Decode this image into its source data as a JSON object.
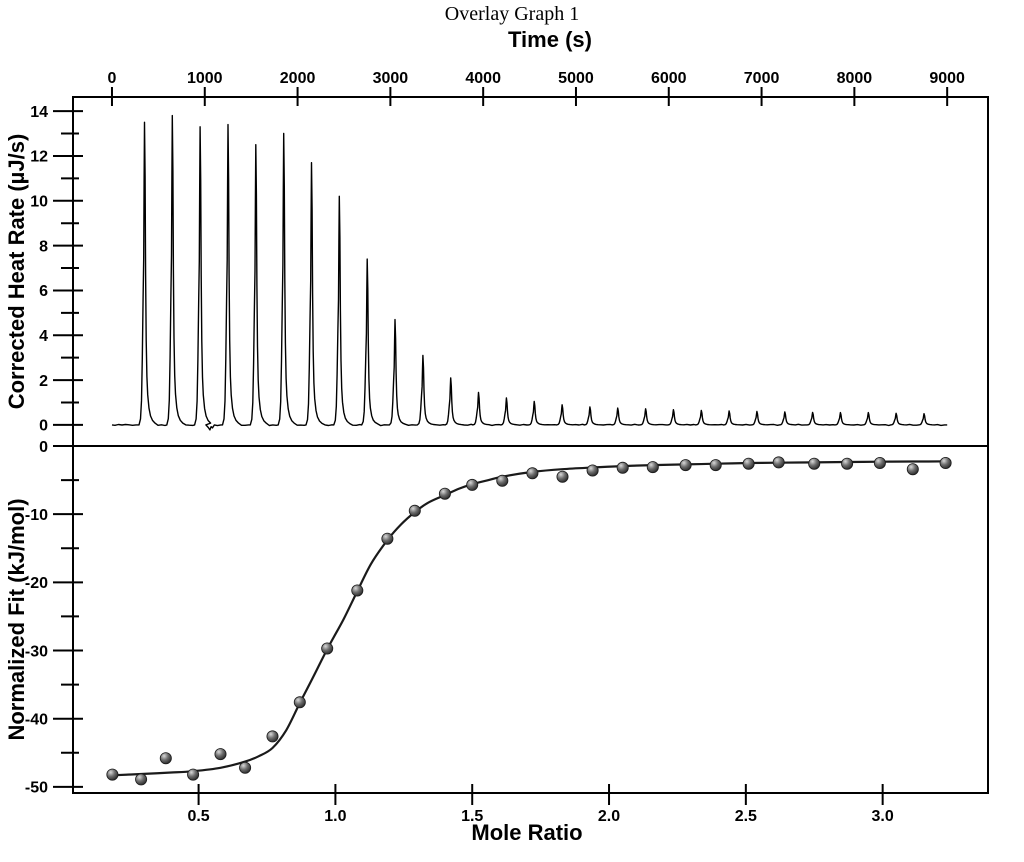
{
  "figure": {
    "title": "Overlay Graph 1"
  },
  "colors": {
    "background": "#ffffff",
    "axis": "#000000",
    "trace": "#000000",
    "fit_line": "#1a1a1a",
    "point_dark": "#1c1c1c",
    "point_mid": "#6f6f6f",
    "point_light": "#d9d9d9"
  },
  "chart_data": [
    {
      "type": "line",
      "name": "thermogram",
      "xlabel": "Time (s)",
      "ylabel": "Corrected Heat Rate (µJ/s)",
      "x_axis_position": "top",
      "grid": false,
      "xlim": [
        -420,
        9440
      ],
      "ylim": [
        -0.94,
        14.63
      ],
      "xticks": [
        0,
        1000,
        2000,
        3000,
        4000,
        5000,
        6000,
        7000,
        8000,
        9000
      ],
      "yticks": [
        0,
        2,
        4,
        6,
        8,
        10,
        12,
        14
      ],
      "yticks_minor": [
        1,
        3,
        5,
        7,
        9,
        11,
        13
      ],
      "baseline": 0,
      "trace_start_time": 0,
      "trace_end_time": 9000,
      "injections": [
        {
          "t": 350,
          "peak": 13.5
        },
        {
          "t": 650,
          "peak": 13.8
        },
        {
          "t": 950,
          "peak": 13.3
        },
        {
          "t": 1250,
          "peak": 13.4
        },
        {
          "t": 1550,
          "peak": 12.5
        },
        {
          "t": 1850,
          "peak": 13.0
        },
        {
          "t": 2150,
          "peak": 11.7
        },
        {
          "t": 2450,
          "peak": 10.2
        },
        {
          "t": 2750,
          "peak": 7.4
        },
        {
          "t": 3050,
          "peak": 4.7
        },
        {
          "t": 3350,
          "peak": 3.1
        },
        {
          "t": 3650,
          "peak": 2.1
        },
        {
          "t": 3950,
          "peak": 1.45
        },
        {
          "t": 4250,
          "peak": 1.2
        },
        {
          "t": 4550,
          "peak": 1.05
        },
        {
          "t": 4850,
          "peak": 0.9
        },
        {
          "t": 5150,
          "peak": 0.8
        },
        {
          "t": 5450,
          "peak": 0.75
        },
        {
          "t": 5750,
          "peak": 0.72
        },
        {
          "t": 6050,
          "peak": 0.68
        },
        {
          "t": 6350,
          "peak": 0.65
        },
        {
          "t": 6650,
          "peak": 0.62
        },
        {
          "t": 6950,
          "peak": 0.6
        },
        {
          "t": 7250,
          "peak": 0.58
        },
        {
          "t": 7550,
          "peak": 0.56
        },
        {
          "t": 7850,
          "peak": 0.55
        },
        {
          "t": 8150,
          "peak": 0.55
        },
        {
          "t": 8450,
          "peak": 0.52
        },
        {
          "t": 8750,
          "peak": 0.5
        }
      ],
      "artifact_dip": {
        "t": 1055,
        "depth": 0.22
      }
    },
    {
      "type": "scatter",
      "name": "binding-isotherm",
      "xlabel": "Mole Ratio",
      "ylabel": "Normalized Fit (kJ/mol)",
      "grid": false,
      "xlim": [
        0.041,
        3.385
      ],
      "ylim": [
        -50.9,
        0
      ],
      "xticks": [
        0.5,
        1.0,
        1.5,
        2.0,
        2.5,
        3.0
      ],
      "yticks": [
        0,
        -10,
        -20,
        -30,
        -40,
        -50
      ],
      "yticks_minor": [
        -5,
        -15,
        -25,
        -35,
        -45
      ],
      "points": [
        [
          0.185,
          -48.2
        ],
        [
          0.29,
          -48.9
        ],
        [
          0.38,
          -45.8
        ],
        [
          0.48,
          -48.2
        ],
        [
          0.58,
          -45.2
        ],
        [
          0.67,
          -47.2
        ],
        [
          0.77,
          -42.6
        ],
        [
          0.87,
          -37.6
        ],
        [
          0.97,
          -29.7
        ],
        [
          1.08,
          -21.2
        ],
        [
          1.19,
          -13.6
        ],
        [
          1.29,
          -9.5
        ],
        [
          1.4,
          -7.0
        ],
        [
          1.5,
          -5.7
        ],
        [
          1.61,
          -5.1
        ],
        [
          1.72,
          -4.0
        ],
        [
          1.83,
          -4.5
        ],
        [
          1.94,
          -3.6
        ],
        [
          2.05,
          -3.2
        ],
        [
          2.16,
          -3.1
        ],
        [
          2.28,
          -2.8
        ],
        [
          2.39,
          -2.8
        ],
        [
          2.51,
          -2.6
        ],
        [
          2.62,
          -2.4
        ],
        [
          2.75,
          -2.6
        ],
        [
          2.87,
          -2.6
        ],
        [
          2.99,
          -2.5
        ],
        [
          3.11,
          -3.4
        ],
        [
          3.23,
          -2.5
        ]
      ],
      "fit_curve": [
        [
          0.185,
          -48.3
        ],
        [
          0.3,
          -48.1
        ],
        [
          0.4,
          -47.9
        ],
        [
          0.48,
          -47.7
        ],
        [
          0.58,
          -47.2
        ],
        [
          0.67,
          -46.3
        ],
        [
          0.72,
          -45.5
        ],
        [
          0.77,
          -44.3
        ],
        [
          0.82,
          -41.7
        ],
        [
          0.87,
          -37.7
        ],
        [
          0.92,
          -33.8
        ],
        [
          0.97,
          -29.8
        ],
        [
          1.03,
          -25.4
        ],
        [
          1.08,
          -21.3
        ],
        [
          1.13,
          -17.3
        ],
        [
          1.19,
          -13.8
        ],
        [
          1.24,
          -11.5
        ],
        [
          1.29,
          -9.7
        ],
        [
          1.34,
          -8.3
        ],
        [
          1.4,
          -7.2
        ],
        [
          1.45,
          -6.3
        ],
        [
          1.5,
          -5.6
        ],
        [
          1.56,
          -5.0
        ],
        [
          1.61,
          -4.5
        ],
        [
          1.72,
          -3.8
        ],
        [
          1.83,
          -3.4
        ],
        [
          1.94,
          -3.15
        ],
        [
          2.05,
          -2.95
        ],
        [
          2.16,
          -2.8
        ],
        [
          2.28,
          -2.7
        ],
        [
          2.39,
          -2.6
        ],
        [
          2.51,
          -2.5
        ],
        [
          2.62,
          -2.45
        ],
        [
          2.75,
          -2.4
        ],
        [
          2.87,
          -2.35
        ],
        [
          2.99,
          -2.3
        ],
        [
          3.11,
          -2.28
        ],
        [
          3.25,
          -2.25
        ]
      ]
    }
  ]
}
